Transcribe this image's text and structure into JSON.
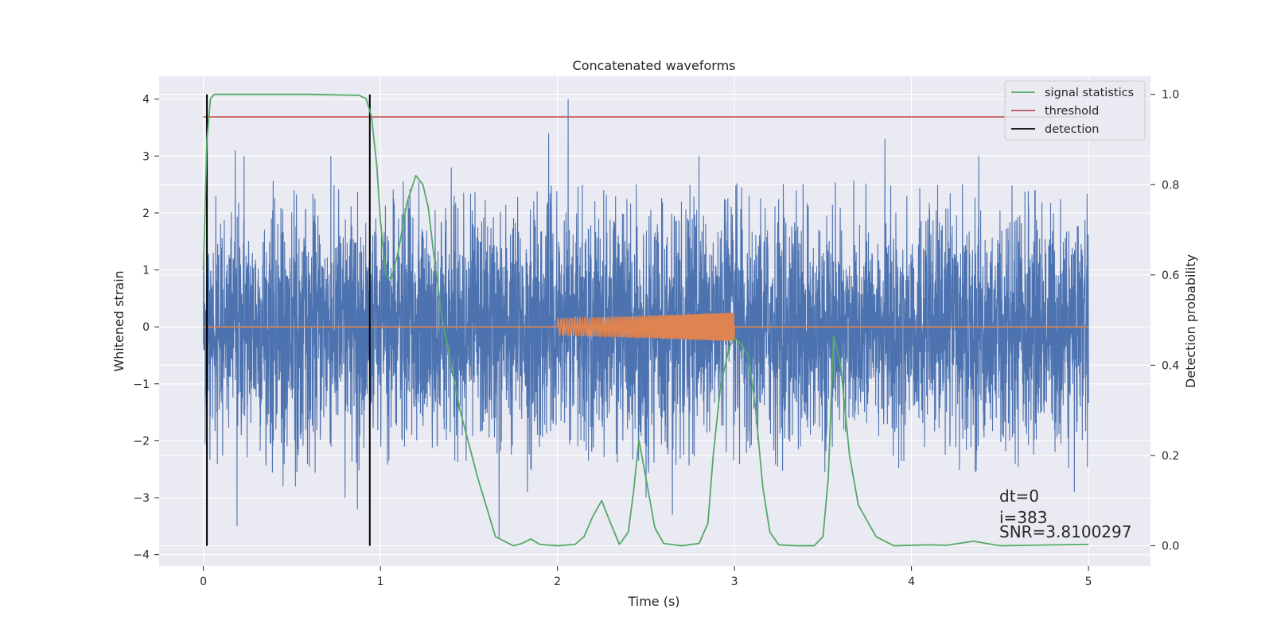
{
  "chart_data": {
    "type": "line",
    "title": "Concatenated waveforms",
    "xlabel": "Time (s)",
    "ylabel": "Whitened strain",
    "y2label": "Detection probability",
    "xlim": [
      -0.25,
      5.35
    ],
    "ylim": [
      -4.2,
      4.4
    ],
    "y2lim": [
      -0.045,
      1.04
    ],
    "xticks": [
      0,
      1,
      2,
      3,
      4,
      5
    ],
    "xtick_labels": [
      "0",
      "1",
      "2",
      "3",
      "4",
      "5"
    ],
    "yticks": [
      4,
      3,
      2,
      1,
      0,
      -1,
      -2,
      -3,
      -4
    ],
    "ytick_labels": [
      "4",
      "3",
      "2",
      "1",
      "0",
      "−1",
      "−2",
      "−3",
      "−4"
    ],
    "y2ticks": [
      1.0,
      0.8,
      0.6,
      0.4,
      0.2,
      0.0
    ],
    "y2tick_labels": [
      "1.0",
      "0.8",
      "0.6",
      "0.4",
      "0.2",
      "0.0"
    ],
    "grid": true,
    "legend_position": "top-right",
    "legend": [
      "signal statistics",
      "threshold",
      "detection"
    ],
    "colors": {
      "strain": "#4c72b0",
      "injection": "#dd8452",
      "signal_statistics": "#55a868",
      "threshold": "#c44e52",
      "detection": "#000000",
      "background": "#eaeaf2",
      "grid": "#ffffff"
    },
    "strain": {
      "x_range": [
        0,
        5
      ],
      "typical_amplitude": 1.0,
      "peaks": [
        {
          "x": 0.07,
          "y": 2.3
        },
        {
          "x": 0.18,
          "y": 3.1
        },
        {
          "x": 0.19,
          "y": -3.5
        },
        {
          "x": 0.23,
          "y": 3.0
        },
        {
          "x": 0.45,
          "y": -2.8
        },
        {
          "x": 0.52,
          "y": -2.8
        },
        {
          "x": 0.72,
          "y": 3.0
        },
        {
          "x": 0.8,
          "y": -3.0
        },
        {
          "x": 0.87,
          "y": -3.2
        },
        {
          "x": 1.4,
          "y": 2.8
        },
        {
          "x": 1.67,
          "y": -3.7
        },
        {
          "x": 1.83,
          "y": -2.9
        },
        {
          "x": 1.95,
          "y": 3.4
        },
        {
          "x": 2.06,
          "y": 4.0
        },
        {
          "x": 2.5,
          "y": -3.0
        },
        {
          "x": 2.65,
          "y": -3.3
        },
        {
          "x": 2.8,
          "y": 3.0
        },
        {
          "x": 3.85,
          "y": 3.3
        },
        {
          "x": 4.38,
          "y": 3.0
        },
        {
          "x": 4.92,
          "y": -2.9
        }
      ]
    },
    "injection": {
      "x_range": [
        2.0,
        3.0
      ],
      "amplitude_start": 0.14,
      "amplitude_end": 0.25
    },
    "threshold": {
      "x_range": [
        0,
        5
      ],
      "value": 0.95
    },
    "detection": {
      "x": [
        0.02,
        0.94
      ],
      "y_range": [
        0.0,
        1.0
      ]
    },
    "signal_statistics": {
      "x": [
        0.0,
        0.02,
        0.04,
        0.06,
        0.1,
        0.3,
        0.6,
        0.88,
        0.92,
        0.95,
        0.98,
        1.0,
        1.03,
        1.06,
        1.1,
        1.15,
        1.2,
        1.24,
        1.27,
        1.3,
        1.35,
        1.45,
        1.55,
        1.65,
        1.75,
        1.8,
        1.85,
        1.9,
        2.0,
        2.1,
        2.15,
        2.2,
        2.25,
        2.3,
        2.35,
        2.4,
        2.43,
        2.46,
        2.5,
        2.55,
        2.6,
        2.7,
        2.8,
        2.85,
        2.88,
        2.92,
        2.97,
        3.0,
        3.03,
        3.08,
        3.12,
        3.16,
        3.2,
        3.25,
        3.35,
        3.45,
        3.5,
        3.53,
        3.56,
        3.6,
        3.65,
        3.7,
        3.8,
        3.9,
        4.1,
        4.2,
        4.35,
        4.5,
        5.0
      ],
      "y": [
        0.61,
        0.9,
        0.99,
        1.0,
        1.0,
        1.0,
        1.0,
        0.998,
        0.99,
        0.95,
        0.84,
        0.72,
        0.6,
        0.59,
        0.65,
        0.76,
        0.82,
        0.8,
        0.75,
        0.65,
        0.5,
        0.3,
        0.15,
        0.02,
        0.0,
        0.005,
        0.015,
        0.003,
        0.0,
        0.003,
        0.02,
        0.065,
        0.1,
        0.05,
        0.003,
        0.03,
        0.12,
        0.235,
        0.15,
        0.04,
        0.005,
        0.0,
        0.005,
        0.05,
        0.2,
        0.35,
        0.44,
        0.46,
        0.45,
        0.42,
        0.3,
        0.13,
        0.03,
        0.002,
        0.0,
        0.0,
        0.02,
        0.15,
        0.465,
        0.4,
        0.2,
        0.09,
        0.02,
        0.0,
        0.002,
        0.001,
        0.01,
        0.0,
        0.003
      ]
    }
  },
  "annotations": {
    "dt": "dt=0",
    "i": "i=383",
    "snr": "SNR=3.8100297"
  }
}
